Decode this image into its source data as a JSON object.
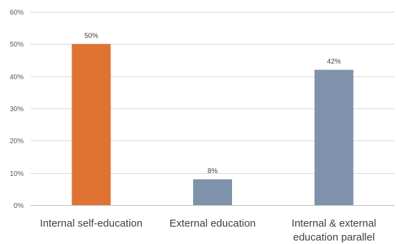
{
  "chart_data": {
    "type": "bar",
    "categories": [
      [
        "Internal self-education"
      ],
      [
        "External education"
      ],
      [
        "Internal & external",
        "education parallel"
      ]
    ],
    "values": [
      50,
      8,
      42
    ],
    "data_labels": [
      "50%",
      "8%",
      "42%"
    ],
    "bar_colors": [
      "#E07334",
      "#7F92AB",
      "#7F92AB"
    ],
    "ylim": [
      0,
      60
    ],
    "yticks": [
      0,
      10,
      20,
      30,
      40,
      50,
      60
    ],
    "ytick_labels": [
      "0%",
      "10%",
      "20%",
      "30%",
      "40%",
      "50%",
      "60%"
    ],
    "grid": true,
    "title": "",
    "xlabel": "",
    "ylabel": ""
  }
}
